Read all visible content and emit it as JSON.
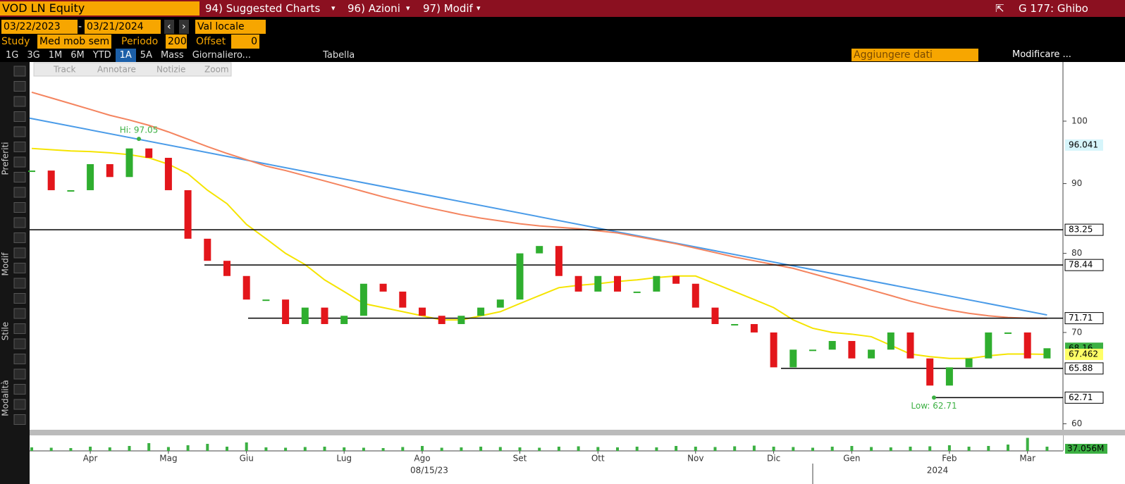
{
  "header": {
    "ticker": "VOD LN Equity",
    "menus": [
      "94) Suggested Charts",
      "96) Azioni",
      "97) Modif"
    ],
    "window": "G 177: Ghibo"
  },
  "controls": {
    "start_date": "03/22/2023",
    "separator": "-",
    "end_date": "03/21/2024",
    "currency": "Val locale",
    "study_label": "Study",
    "study": "Med mob sem",
    "period_label": "Periodo",
    "period": 200,
    "offset_label": "Offset",
    "offset": 0
  },
  "tabs": [
    "1G",
    "3G",
    "1M",
    "6M",
    "YTD",
    "1A",
    "5A",
    "Mass",
    "Giornaliero...",
    "Tabella"
  ],
  "add_data": "Aggiungere dati",
  "edit": "Modificare ...",
  "chart_tools": [
    "Track",
    "Annotare",
    "Notizie",
    "Zoom"
  ],
  "side_sections": [
    "Preferiti",
    "Modif",
    "Stile",
    "Modalità"
  ],
  "chart_data": {
    "type": "candlestick",
    "categories": [
      null,
      null,
      null,
      "Apr",
      null,
      null,
      null,
      "Mag",
      null,
      null,
      null,
      "Giu",
      null,
      null,
      null,
      null,
      "Lug",
      null,
      null,
      null,
      "Ago",
      null,
      null,
      null,
      null,
      "Set",
      null,
      null,
      null,
      "Ott",
      null,
      null,
      null,
      null,
      "Nov",
      null,
      null,
      null,
      "Dic",
      null,
      null,
      null,
      "Gen",
      null,
      null,
      null,
      null,
      "Feb",
      null,
      null,
      null,
      "Mar",
      null
    ],
    "close": {
      "up_color": "#2fae2f",
      "down_color": "#e3161b",
      "values": [
        92,
        89,
        89,
        93,
        91,
        95.5,
        94,
        89,
        82,
        79,
        77,
        74,
        74,
        71,
        73,
        71,
        72,
        76,
        75,
        73,
        72,
        71,
        72,
        73,
        74,
        80,
        81,
        77,
        75,
        77,
        75,
        75,
        77,
        76,
        73,
        71,
        71,
        70,
        66,
        68,
        68,
        69,
        67,
        68,
        70,
        67,
        64,
        66,
        67,
        70,
        70,
        67,
        68.16
      ]
    },
    "averages": [
      {
        "color": "#f5e400",
        "values": [
          95.5,
          95.3,
          95.1,
          95,
          94.8,
          94.5,
          94,
          93,
          91.5,
          89,
          87,
          84,
          82,
          80,
          78.5,
          76.5,
          75,
          73.5,
          73,
          72.5,
          72,
          71.5,
          71.5,
          72,
          72.5,
          73.5,
          74.5,
          75.5,
          75.8,
          76,
          76.3,
          76.5,
          76.8,
          77,
          77,
          76,
          75,
          74,
          73,
          71.5,
          70.5,
          70,
          69.8,
          69.5,
          68.5,
          67.5,
          67.2,
          67,
          67,
          67.3,
          67.5,
          67.5,
          67.462
        ]
      },
      {
        "color": "#f4845f",
        "values": [
          105,
          104,
          103,
          102,
          101,
          100.2,
          99.3,
          98.2,
          97,
          95.8,
          94.7,
          93.7,
          92.7,
          92,
          91.2,
          90.4,
          89.6,
          88.8,
          88,
          87.3,
          86.6,
          86,
          85.4,
          84.9,
          84.5,
          84.1,
          83.8,
          83.6,
          83.4,
          83.1,
          82.8,
          82.3,
          81.8,
          81.3,
          80.7,
          80.1,
          79.5,
          79,
          78.5,
          78,
          77.3,
          76.6,
          75.9,
          75.2,
          74.5,
          73.8,
          73.2,
          72.7,
          72.3,
          72,
          71.8,
          71.7,
          71.7
        ]
      }
    ],
    "trendline": {
      "color": "#4a9be8",
      "values": [
        100.5,
        72.1
      ]
    },
    "levels": [
      83.25,
      78.44,
      71.71,
      65.88,
      62.71
    ],
    "hi": {
      "label": "Hi: 97.05",
      "value": 97.05
    },
    "low": {
      "label": "Low: 62.71",
      "value": 62.71
    },
    "price_badges": [
      {
        "value": 96.041,
        "color": "#d6f5fb"
      },
      {
        "value": 68.16,
        "color": "#3cb043"
      },
      {
        "value": 67.462,
        "color": "#ffff66"
      }
    ],
    "ylim": [
      59.4,
      110.5
    ],
    "yticks": [
      60,
      70,
      80,
      90,
      100
    ],
    "log_scale": true,
    "volume": {
      "color": "#3cb043",
      "values": [
        10,
        9,
        8,
        12,
        10,
        14,
        22,
        11,
        16,
        20,
        12,
        24,
        10,
        9,
        11,
        12,
        10,
        9,
        8,
        11,
        14,
        9,
        10,
        12,
        11,
        10,
        9,
        12,
        13,
        11,
        10,
        12,
        10,
        14,
        12,
        11,
        13,
        15,
        12,
        11,
        9,
        12,
        14,
        11,
        10,
        12,
        13,
        16,
        12,
        14,
        18,
        37,
        12
      ],
      "ylim": [
        0,
        40
      ],
      "label": "37.056M"
    },
    "x_annotations": [
      "08/15/23",
      "2024"
    ]
  }
}
